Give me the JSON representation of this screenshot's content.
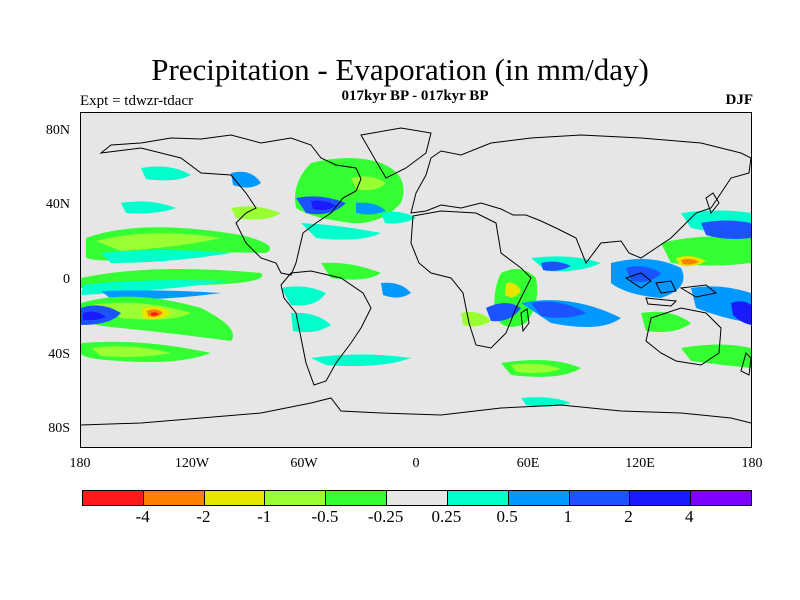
{
  "title": "Precipitation - Evaporation (in mm/day)",
  "subtitle": "017kyr BP - 017kyr BP",
  "experiment": "Expt = tdwzr-tdacr",
  "season": "DJF",
  "map": {
    "projection": "cylindrical-equidistant",
    "lon_range": [
      -180,
      180
    ],
    "lat_range": [
      -90,
      90
    ],
    "background": "#e6e6e6",
    "y_ticks": [
      {
        "label": "80N",
        "lat": 80
      },
      {
        "label": "40N",
        "lat": 40
      },
      {
        "label": "0",
        "lat": 0
      },
      {
        "label": "40S",
        "lat": -40
      },
      {
        "label": "80S",
        "lat": -80
      }
    ],
    "x_ticks": [
      {
        "label": "180",
        "lon": -180
      },
      {
        "label": "120W",
        "lon": -120
      },
      {
        "label": "60W",
        "lon": -60
      },
      {
        "label": "0",
        "lon": 0
      },
      {
        "label": "60E",
        "lon": 60
      },
      {
        "label": "120E",
        "lon": 120
      },
      {
        "label": "180",
        "lon": 180
      }
    ]
  },
  "colorbar": {
    "colors": [
      "#ff1a1a",
      "#ff8000",
      "#e6e600",
      "#99ff33",
      "#33ff33",
      "#e6e6e6",
      "#00ffcc",
      "#0099ff",
      "#1a53ff",
      "#1a1aff",
      "#8000ff"
    ],
    "labels": [
      "-4",
      "-2",
      "-1",
      "-0.5",
      "-0.25",
      "0.25",
      "0.5",
      "1",
      "2",
      "4"
    ]
  }
}
